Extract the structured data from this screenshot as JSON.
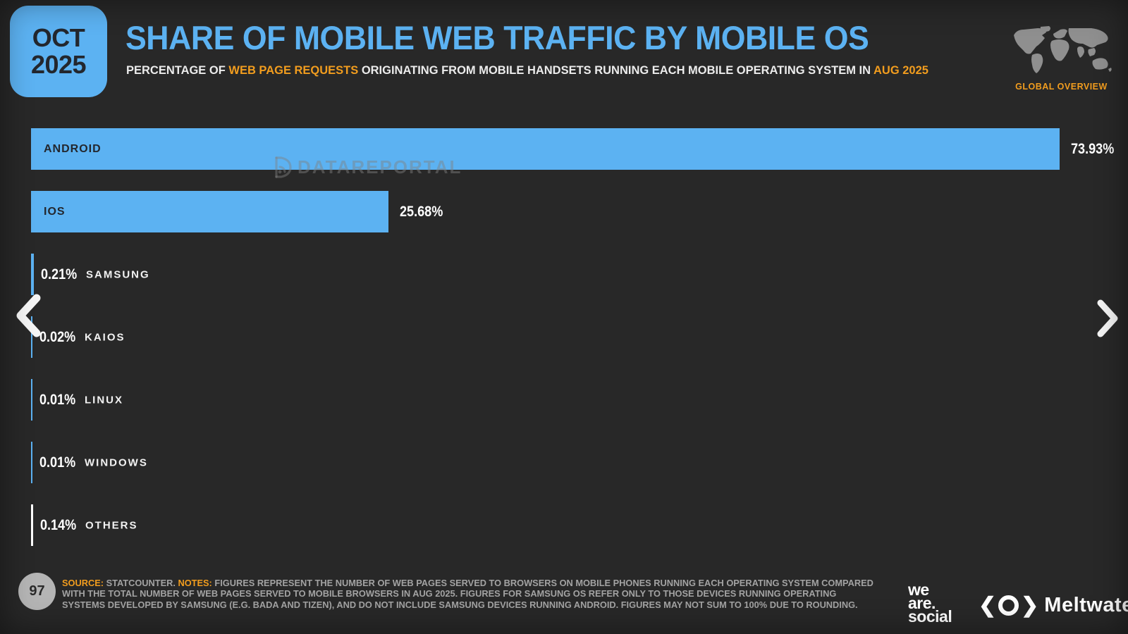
{
  "page": {
    "bg_color": "#282828",
    "accent_blue": "#5cb2f2",
    "accent_orange": "#f29d1e"
  },
  "badge": {
    "month": "OCT",
    "year": "2025"
  },
  "header": {
    "title": "SHARE OF MOBILE WEB TRAFFIC BY MOBILE OS",
    "subtitle_prefix": "PERCENTAGE OF ",
    "subtitle_highlight1": "WEB PAGE REQUESTS",
    "subtitle_mid": " ORIGINATING FROM MOBILE HANDSETS RUNNING EACH MOBILE OPERATING SYSTEM IN ",
    "subtitle_highlight2": "AUG 2025"
  },
  "global_overview": {
    "label": "GLOBAL OVERVIEW",
    "icon": "world-map-icon"
  },
  "watermark": {
    "text": "DATAREPORTAL",
    "icon": "datareportal-logo-icon"
  },
  "nav": {
    "left_icon": "chevron-left-icon",
    "right_icon": "chevron-right-icon"
  },
  "chart_data": {
    "type": "bar",
    "orientation": "horizontal",
    "title": "SHARE OF MOBILE WEB TRAFFIC BY MOBILE OS",
    "categories": [
      "ANDROID",
      "IOS",
      "SAMSUNG",
      "KAIOS",
      "LINUX",
      "WINDOWS",
      "OTHERS"
    ],
    "values": [
      73.93,
      25.68,
      0.21,
      0.02,
      0.01,
      0.01,
      0.14
    ],
    "value_labels": [
      "73.93%",
      "25.68%",
      "0.21%",
      "0.02%",
      "0.01%",
      "0.01%",
      "0.14%"
    ],
    "colors": [
      "#5cb2f2",
      "#5cb2f2",
      "#5cb2f2",
      "#5cb2f2",
      "#5cb2f2",
      "#5cb2f2",
      "#ffffff"
    ],
    "xlim": [
      0,
      100
    ],
    "grid": false,
    "legend": "none",
    "inside_label_threshold": 5
  },
  "footer": {
    "page_number": "97",
    "source_label": "SOURCE:",
    "source_text": " STATCOUNTER. ",
    "notes_label": "NOTES:",
    "notes_text": " FIGURES REPRESENT THE NUMBER OF WEB PAGES SERVED TO BROWSERS ON MOBILE PHONES RUNNING EACH OPERATING SYSTEM COMPARED WITH THE TOTAL NUMBER OF WEB PAGES SERVED TO MOBILE BROWSERS IN AUG 2025. FIGURES FOR SAMSUNG OS REFER ONLY TO THOSE DEVICES RUNNING OPERATING SYSTEMS DEVELOPED BY SAMSUNG (E.G. BADA AND TIZEN), AND DO NOT INCLUDE SAMSUNG DEVICES RUNNING ANDROID. FIGURES MAY NOT SUM TO 100% DUE TO ROUNDING."
  },
  "logos": {
    "we_are_social_lines": [
      "we",
      "are.",
      "social"
    ],
    "meltwater": "Meltwater",
    "meltwater_icon": "meltwater-logo-icon"
  }
}
